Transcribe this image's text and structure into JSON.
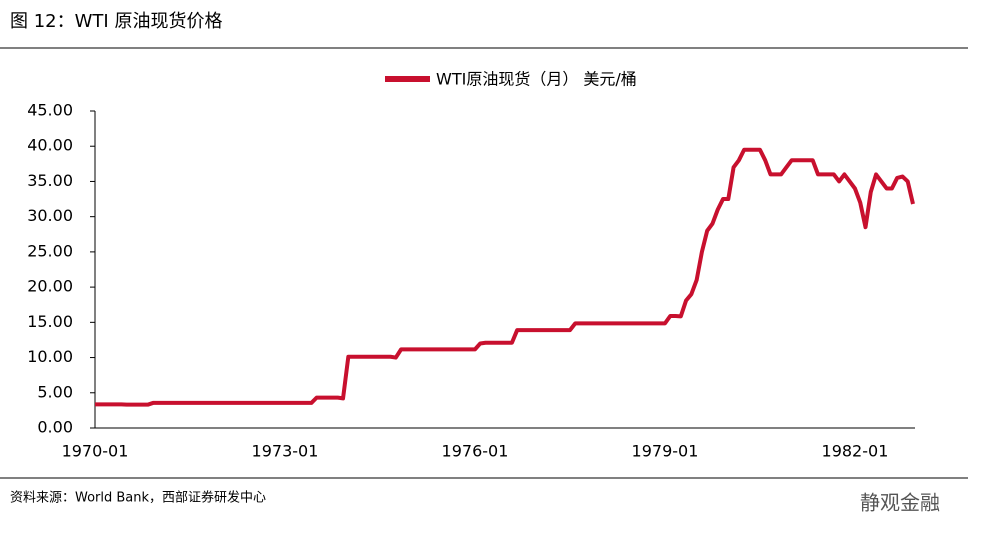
{
  "title": "图 12：WTI 原油现货价格",
  "source": "资料来源：World Bank，西部证券研发中心",
  "watermark": "静观金融",
  "chart_data": {
    "type": "line",
    "categories": [
      "1970-01",
      null,
      null,
      null,
      null,
      null,
      null,
      null,
      null,
      null,
      null,
      null,
      null,
      null,
      null,
      null,
      null,
      null,
      null,
      null,
      null,
      null,
      null,
      null,
      null,
      null,
      null,
      null,
      null,
      null,
      null,
      null,
      null,
      null,
      null,
      null,
      "1973-01",
      null,
      null,
      null,
      null,
      null,
      null,
      null,
      null,
      null,
      null,
      null,
      null,
      null,
      null,
      null,
      null,
      null,
      null,
      null,
      null,
      null,
      null,
      null,
      null,
      null,
      null,
      null,
      null,
      null,
      null,
      null,
      null,
      null,
      null,
      null,
      "1976-01",
      null,
      null,
      null,
      null,
      null,
      null,
      null,
      null,
      null,
      null,
      null,
      null,
      null,
      null,
      null,
      null,
      null,
      null,
      null,
      null,
      null,
      null,
      null,
      null,
      null,
      null,
      null,
      null,
      null,
      null,
      null,
      null,
      null,
      null,
      null,
      "1979-01",
      null,
      null,
      null,
      null,
      null,
      null,
      null,
      null,
      null,
      null,
      null,
      null,
      null,
      null,
      null,
      null,
      null,
      null,
      null,
      null,
      null,
      null,
      null,
      null,
      null,
      null,
      null,
      null,
      null,
      null,
      null,
      null,
      null,
      null,
      null,
      "1982-01",
      null,
      null,
      null,
      null,
      null,
      null,
      null,
      null,
      null,
      null,
      null
    ],
    "series": [
      {
        "name": "WTI原油现货（月） 美元/桶",
        "color": "#c8102e",
        "values": [
          3.35,
          3.35,
          3.35,
          3.35,
          3.35,
          3.35,
          3.31,
          3.31,
          3.31,
          3.31,
          3.31,
          3.56,
          3.56,
          3.56,
          3.56,
          3.56,
          3.56,
          3.56,
          3.56,
          3.56,
          3.56,
          3.56,
          3.56,
          3.56,
          3.56,
          3.56,
          3.56,
          3.56,
          3.56,
          3.56,
          3.56,
          3.56,
          3.56,
          3.56,
          3.56,
          3.56,
          3.56,
          3.56,
          3.56,
          3.56,
          3.56,
          3.56,
          4.31,
          4.31,
          4.31,
          4.31,
          4.31,
          4.2,
          10.11,
          10.11,
          10.11,
          10.11,
          10.11,
          10.11,
          10.11,
          10.11,
          10.11,
          10.0,
          11.16,
          11.16,
          11.16,
          11.16,
          11.16,
          11.16,
          11.16,
          11.16,
          11.16,
          11.16,
          11.16,
          11.16,
          11.16,
          11.16,
          11.16,
          12.0,
          12.1,
          12.1,
          12.1,
          12.1,
          12.1,
          12.1,
          13.9,
          13.9,
          13.9,
          13.9,
          13.9,
          13.9,
          13.9,
          13.9,
          13.9,
          13.9,
          13.9,
          14.85,
          14.85,
          14.85,
          14.85,
          14.85,
          14.85,
          14.85,
          14.85,
          14.85,
          14.85,
          14.85,
          14.85,
          14.85,
          14.85,
          14.85,
          14.85,
          14.85,
          14.85,
          15.9,
          15.9,
          15.85,
          18.1,
          19,
          21,
          25,
          28,
          29,
          31,
          32.5,
          32.5,
          37,
          38,
          39.5,
          39.5,
          39.5,
          39.5,
          38,
          36,
          36,
          36,
          37,
          38,
          38,
          38,
          38,
          38,
          36,
          36,
          36,
          36,
          35,
          36,
          35,
          34,
          32,
          28.5,
          33.5,
          36,
          35,
          34,
          34,
          35.5,
          35.7,
          35,
          31.8
        ]
      }
    ],
    "ylim": [
      0,
      45
    ],
    "yticks": [
      {
        "value": 0,
        "label": "0.00"
      },
      {
        "value": 5,
        "label": "5.00"
      },
      {
        "value": 10,
        "label": "10.00"
      },
      {
        "value": 15,
        "label": "15.00"
      },
      {
        "value": 20,
        "label": "20.00"
      },
      {
        "value": 25,
        "label": "25.00"
      },
      {
        "value": 30,
        "label": "30.00"
      },
      {
        "value": 35,
        "label": "35.00"
      },
      {
        "value": 40,
        "label": "40.00"
      },
      {
        "value": 45,
        "label": "45.00"
      }
    ],
    "grid": false
  }
}
